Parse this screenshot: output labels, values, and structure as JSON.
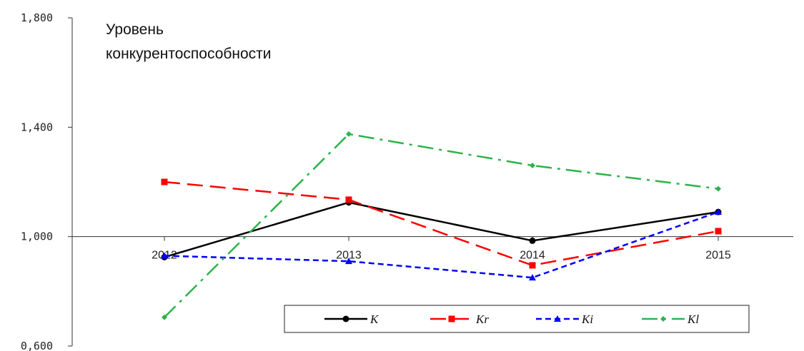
{
  "chart_data": {
    "type": "line",
    "title": "",
    "ylabel_line1": "Уровень",
    "ylabel_line2": "конкурентоспособности",
    "xlabel": "",
    "categories": [
      "2012",
      "2013",
      "2014",
      "2015"
    ],
    "ylim": [
      0.6,
      1.8
    ],
    "yticks": [
      "0,600",
      "1,000",
      "1,400",
      "1,800"
    ],
    "x_axis_crosses_at": 1.0,
    "grid": false,
    "legend_position": "bottom-right",
    "series": [
      {
        "name": "K",
        "color": "#000000",
        "dash": "solid",
        "marker": "circle",
        "values": [
          0.925,
          1.125,
          0.985,
          1.09
        ]
      },
      {
        "name": "Kr",
        "color": "#ff0000",
        "dash": "longdash",
        "marker": "square",
        "values": [
          1.2,
          1.135,
          0.895,
          1.02
        ]
      },
      {
        "name": "Ki",
        "color": "#0000ff",
        "dash": "dash",
        "marker": "triangle",
        "values": [
          0.93,
          0.91,
          0.85,
          1.09
        ]
      },
      {
        "name": "Kl",
        "color": "#2db34a",
        "dash": "dashdot",
        "marker": "diamond",
        "values": [
          0.705,
          1.375,
          1.26,
          1.175
        ]
      }
    ]
  }
}
